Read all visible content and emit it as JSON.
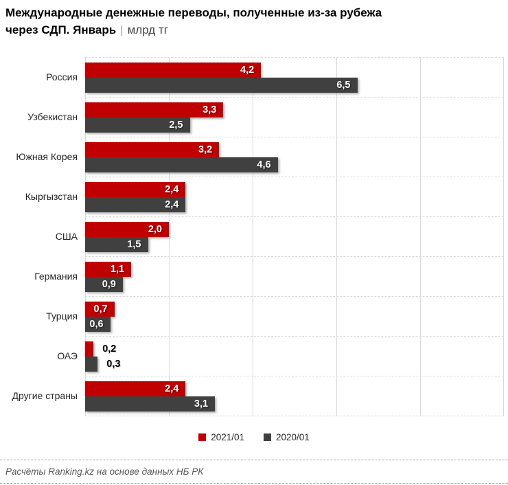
{
  "title": {
    "line1": "Международные денежные переводы, полученные из-за рубежа",
    "line2_bold": "через СДП. Январь",
    "separator": "|",
    "unit": "млрд тг"
  },
  "chart_data": {
    "type": "bar",
    "orientation": "horizontal",
    "title": "Международные денежные переводы, полученные из-за рубежа через СДП. Январь",
    "unit": "млрд тг",
    "categories": [
      "Россия",
      "Узбекистан",
      "Южная Корея",
      "Кыргызстан",
      "США",
      "Германия",
      "Турция",
      "ОАЭ",
      "Другие страны"
    ],
    "series": [
      {
        "name": "2021/01",
        "color": "#c00000",
        "values": [
          4.2,
          3.3,
          3.2,
          2.4,
          2.0,
          1.1,
          0.7,
          0.2,
          2.4
        ],
        "labels": [
          "4,2",
          "3,3",
          "3,2",
          "2,4",
          "2,0",
          "1,1",
          "0,7",
          "0,2",
          "2,4"
        ]
      },
      {
        "name": "2020/01",
        "color": "#404040",
        "values": [
          6.5,
          2.5,
          4.6,
          2.4,
          1.5,
          0.9,
          0.6,
          0.3,
          3.1
        ],
        "labels": [
          "6,5",
          "2,5",
          "4,6",
          "2,4",
          "1,5",
          "0,9",
          "0,6",
          "0,3",
          "3,1"
        ]
      }
    ],
    "xlim": [
      0,
      10
    ],
    "gridline_interval": 2,
    "grid": "vertical solid lines, dashed horizontal category separators",
    "legend_position": "bottom-center"
  },
  "legend": {
    "items": [
      {
        "label": "2021/01",
        "color": "#c00000"
      },
      {
        "label": "2020/01",
        "color": "#404040"
      }
    ]
  },
  "footer": {
    "source_text": "Расчёты Ranking.kz на основе данных НБ РК"
  },
  "colors": {
    "series_2021": "#c00000",
    "series_2020": "#404040",
    "gridline": "#d9d9d9",
    "separator_dash": "#a0a0a0",
    "footer_text": "#595959",
    "category_text": "#262626"
  }
}
